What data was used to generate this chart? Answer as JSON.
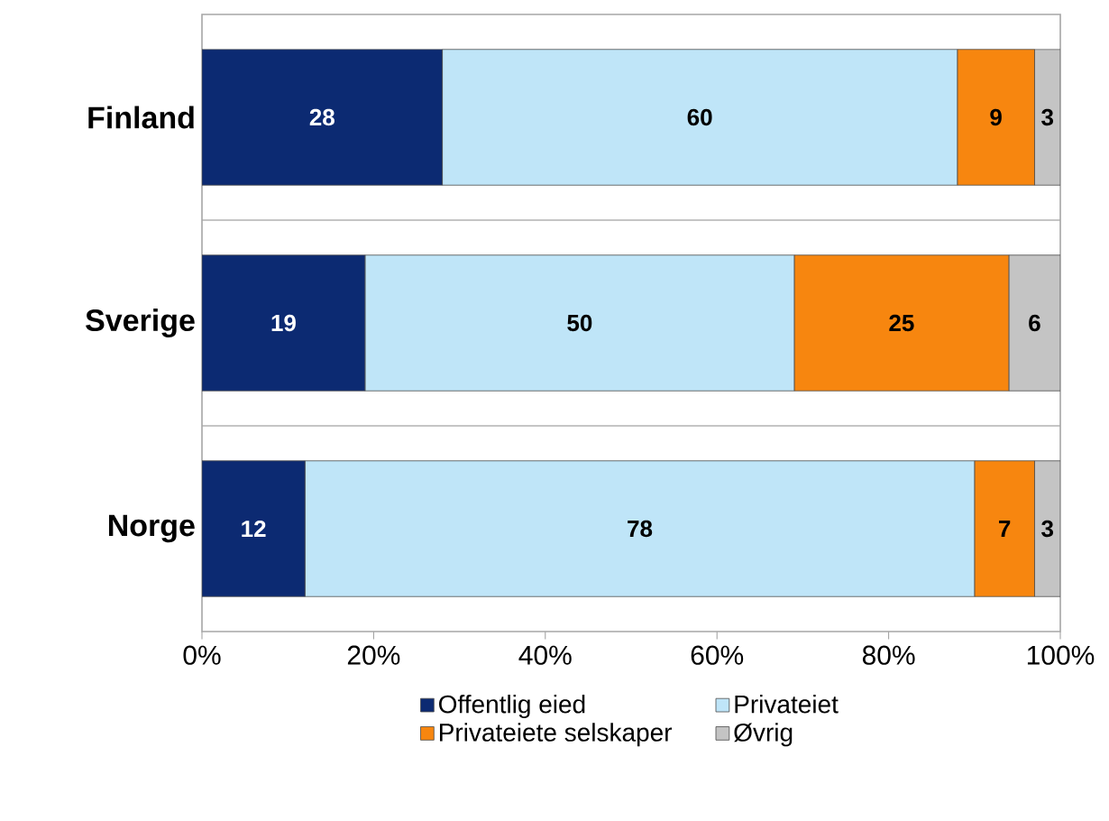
{
  "chart_data": {
    "type": "bar",
    "orientation": "horizontal",
    "stacked": true,
    "categories": [
      "Finland",
      "Sverige",
      "Norge"
    ],
    "series": [
      {
        "name": "Offentlig eied",
        "color": "#0c2a72",
        "values": [
          28,
          19,
          12
        ]
      },
      {
        "name": "Privateiet",
        "color": "#bfe5f8",
        "values": [
          60,
          50,
          78
        ]
      },
      {
        "name": "Privateiete selskaper",
        "color": "#f7860f",
        "values": [
          9,
          25,
          7
        ]
      },
      {
        "name": "Øvrig",
        "color": "#c4c4c4",
        "values": [
          3,
          6,
          3
        ]
      }
    ],
    "xlim": [
      0,
      100
    ],
    "xticks": [
      {
        "value": 0,
        "label": "0%"
      },
      {
        "value": 20,
        "label": "20%"
      },
      {
        "value": 40,
        "label": "40%"
      },
      {
        "value": 60,
        "label": "60%"
      },
      {
        "value": 80,
        "label": "80%"
      },
      {
        "value": 100,
        "label": "100%"
      }
    ],
    "data_labels": true,
    "grid": "y",
    "legend": "bottom"
  }
}
